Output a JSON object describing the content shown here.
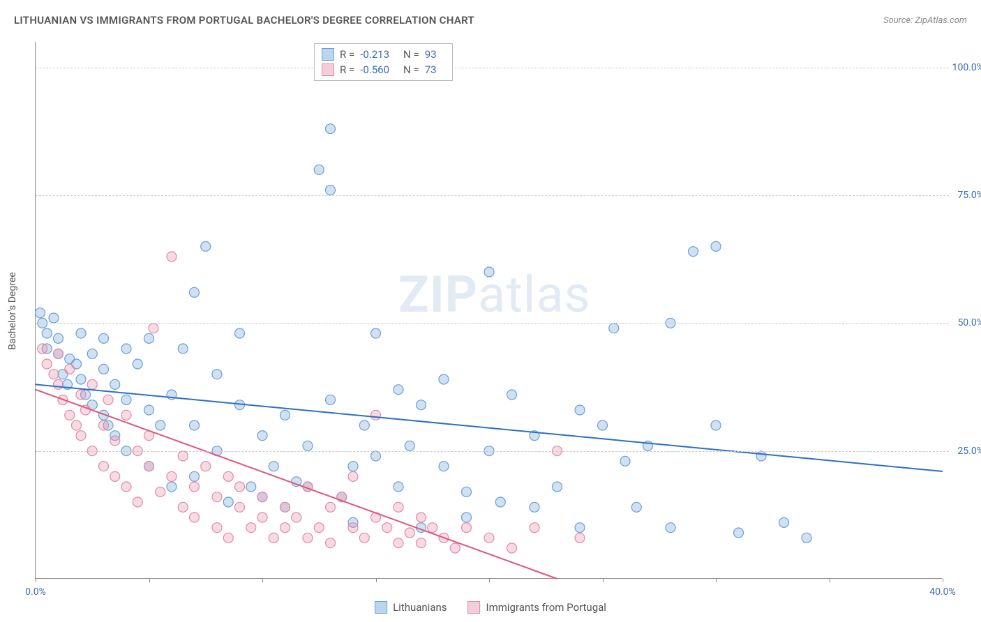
{
  "title": "LITHUANIAN VS IMMIGRANTS FROM PORTUGAL BACHELOR'S DEGREE CORRELATION CHART",
  "source_label": "Source: ZipAtlas.com",
  "watermark_prefix": "ZIP",
  "watermark_suffix": "atlas",
  "y_axis_label": "Bachelor's Degree",
  "chart": {
    "type": "scatter",
    "xlim": [
      0,
      40
    ],
    "ylim": [
      0,
      105
    ],
    "x_ticks": [
      0,
      5,
      10,
      15,
      20,
      25,
      30,
      35,
      40
    ],
    "x_tick_labels": [
      "0.0%",
      "",
      "",
      "",
      "",
      "",
      "",
      "",
      "40.0%"
    ],
    "y_ticks": [
      25,
      50,
      75,
      100
    ],
    "y_tick_labels": [
      "25.0%",
      "50.0%",
      "75.0%",
      "100.0%"
    ],
    "grid_color_h": "#cccccc",
    "background_color": "#ffffff",
    "marker_radius": 7,
    "marker_stroke_width": 1.2,
    "line_width": 2
  },
  "series": [
    {
      "name": "Lithuanians",
      "fill": "rgba(120,170,220,0.35)",
      "stroke": "#6a9fd4",
      "line_color": "#2a6fc9",
      "swatch_fill": "#bcd5ee",
      "swatch_border": "#6a9fd4",
      "R": "-0.213",
      "N": "93",
      "trend": {
        "x1": 0,
        "y1": 38,
        "x2": 40,
        "y2": 21
      },
      "points": [
        [
          0.2,
          52
        ],
        [
          0.3,
          50
        ],
        [
          0.5,
          48
        ],
        [
          0.5,
          45
        ],
        [
          0.8,
          51
        ],
        [
          1,
          47
        ],
        [
          1,
          44
        ],
        [
          1.2,
          40
        ],
        [
          1.4,
          38
        ],
        [
          1.5,
          43
        ],
        [
          1.8,
          42
        ],
        [
          2,
          48
        ],
        [
          2,
          39
        ],
        [
          2.2,
          36
        ],
        [
          2.5,
          34
        ],
        [
          2.5,
          44
        ],
        [
          3,
          47
        ],
        [
          3,
          41
        ],
        [
          3,
          32
        ],
        [
          3.2,
          30
        ],
        [
          3.5,
          38
        ],
        [
          3.5,
          28
        ],
        [
          4,
          45
        ],
        [
          4,
          35
        ],
        [
          4,
          25
        ],
        [
          4.5,
          42
        ],
        [
          5,
          47
        ],
        [
          5,
          33
        ],
        [
          5,
          22
        ],
        [
          5.5,
          30
        ],
        [
          6,
          36
        ],
        [
          6,
          18
        ],
        [
          6.5,
          45
        ],
        [
          7,
          56
        ],
        [
          7,
          30
        ],
        [
          7,
          20
        ],
        [
          7.5,
          65
        ],
        [
          8,
          40
        ],
        [
          8,
          25
        ],
        [
          8.5,
          15
        ],
        [
          9,
          34
        ],
        [
          9,
          48
        ],
        [
          9.5,
          18
        ],
        [
          10,
          28
        ],
        [
          10,
          16
        ],
        [
          10.5,
          22
        ],
        [
          11,
          32
        ],
        [
          11,
          14
        ],
        [
          11.5,
          19
        ],
        [
          12,
          26
        ],
        [
          12,
          18
        ],
        [
          12.5,
          80
        ],
        [
          13,
          88
        ],
        [
          13,
          35
        ],
        [
          13,
          76
        ],
        [
          13.5,
          16
        ],
        [
          14,
          22
        ],
        [
          14,
          11
        ],
        [
          14.5,
          30
        ],
        [
          15,
          48
        ],
        [
          15,
          24
        ],
        [
          16,
          37
        ],
        [
          16,
          18
        ],
        [
          16.5,
          26
        ],
        [
          17,
          34
        ],
        [
          17,
          10
        ],
        [
          18,
          39
        ],
        [
          18,
          22
        ],
        [
          19,
          17
        ],
        [
          19,
          12
        ],
        [
          20,
          60
        ],
        [
          20,
          25
        ],
        [
          20.5,
          15
        ],
        [
          21,
          36
        ],
        [
          22,
          28
        ],
        [
          22,
          14
        ],
        [
          23,
          18
        ],
        [
          24,
          10
        ],
        [
          24,
          33
        ],
        [
          25,
          30
        ],
        [
          25.5,
          49
        ],
        [
          26,
          23
        ],
        [
          26.5,
          14
        ],
        [
          27,
          26
        ],
        [
          28,
          50
        ],
        [
          28,
          10
        ],
        [
          29,
          64
        ],
        [
          30,
          65
        ],
        [
          30,
          30
        ],
        [
          31,
          9
        ],
        [
          32,
          24
        ],
        [
          33,
          11
        ],
        [
          34,
          8
        ]
      ]
    },
    {
      "name": "Immigrants from Portugal",
      "fill": "rgba(235,150,175,0.35)",
      "stroke": "#e08aa5",
      "line_color": "#e0557a",
      "swatch_fill": "#f5cdd9",
      "swatch_border": "#e08aa5",
      "R": "-0.560",
      "N": "73",
      "trend": {
        "x1": 0,
        "y1": 37,
        "x2": 23,
        "y2": 0
      },
      "points": [
        [
          0.3,
          45
        ],
        [
          0.5,
          42
        ],
        [
          0.8,
          40
        ],
        [
          1,
          38
        ],
        [
          1,
          44
        ],
        [
          1.2,
          35
        ],
        [
          1.5,
          41
        ],
        [
          1.5,
          32
        ],
        [
          1.8,
          30
        ],
        [
          2,
          36
        ],
        [
          2,
          28
        ],
        [
          2.2,
          33
        ],
        [
          2.5,
          25
        ],
        [
          2.5,
          38
        ],
        [
          3,
          30
        ],
        [
          3,
          22
        ],
        [
          3.2,
          35
        ],
        [
          3.5,
          20
        ],
        [
          3.5,
          27
        ],
        [
          4,
          32
        ],
        [
          4,
          18
        ],
        [
          4.5,
          25
        ],
        [
          4.5,
          15
        ],
        [
          5,
          22
        ],
        [
          5,
          28
        ],
        [
          5.2,
          49
        ],
        [
          5.5,
          17
        ],
        [
          6,
          20
        ],
        [
          6,
          63
        ],
        [
          6.5,
          14
        ],
        [
          6.5,
          24
        ],
        [
          7,
          18
        ],
        [
          7,
          12
        ],
        [
          7.5,
          22
        ],
        [
          8,
          16
        ],
        [
          8,
          10
        ],
        [
          8.5,
          20
        ],
        [
          8.5,
          8
        ],
        [
          9,
          14
        ],
        [
          9,
          18
        ],
        [
          9.5,
          10
        ],
        [
          10,
          12
        ],
        [
          10,
          16
        ],
        [
          10.5,
          8
        ],
        [
          11,
          14
        ],
        [
          11,
          10
        ],
        [
          11.5,
          12
        ],
        [
          12,
          8
        ],
        [
          12,
          18
        ],
        [
          12.5,
          10
        ],
        [
          13,
          14
        ],
        [
          13,
          7
        ],
        [
          13.5,
          16
        ],
        [
          14,
          10
        ],
        [
          14,
          20
        ],
        [
          14.5,
          8
        ],
        [
          15,
          12
        ],
        [
          15,
          32
        ],
        [
          15.5,
          10
        ],
        [
          16,
          7
        ],
        [
          16,
          14
        ],
        [
          16.5,
          9
        ],
        [
          17,
          7
        ],
        [
          17,
          12
        ],
        [
          17.5,
          10
        ],
        [
          18,
          8
        ],
        [
          18.5,
          6
        ],
        [
          19,
          10
        ],
        [
          20,
          8
        ],
        [
          21,
          6
        ],
        [
          22,
          10
        ],
        [
          23,
          25
        ],
        [
          24,
          8
        ]
      ]
    }
  ],
  "legend": {
    "series1_label": "Lithuanians",
    "series2_label": "Immigrants from Portugal"
  },
  "stats_labels": {
    "R": "R =",
    "N": "N ="
  }
}
